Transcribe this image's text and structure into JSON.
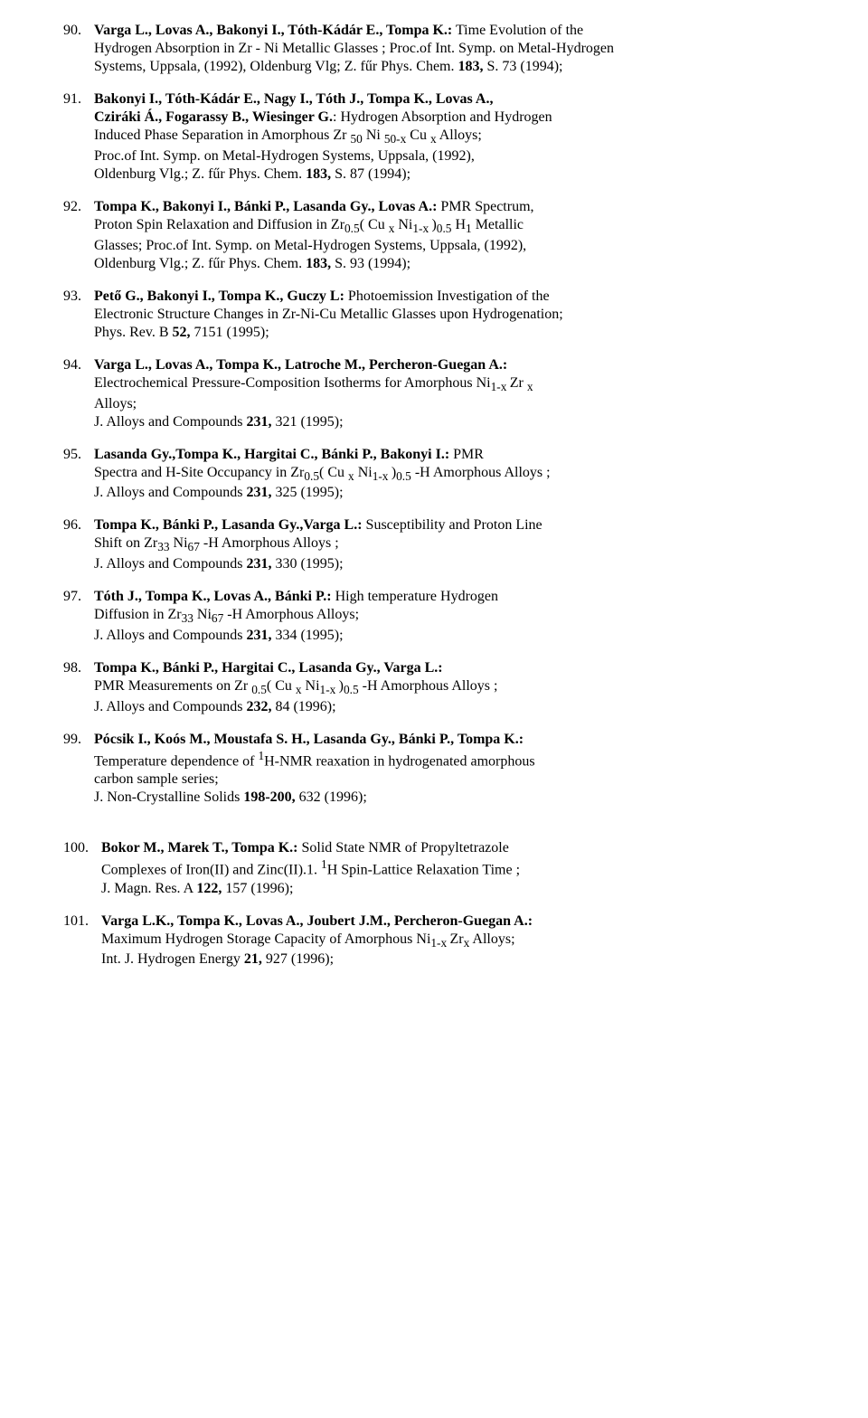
{
  "entries": [
    {
      "num": "90.",
      "authors": "Varga L.,  Lovas A., Bakonyi I., Tóth-Kádár E., Tompa K.:",
      "title_a": "  Time Evolution of the",
      "line2": "Hydrogen Absorption in Zr - Ni  Metallic Glasses ; Proc.of Int. Symp. on Metal-Hydrogen",
      "line3": "Systems, Uppsala, (1992), Oldenburg Vlg; Z. fűr  Phys. Chem. ",
      "bold_a": "183,",
      "after_a": " S. 73 (1994);"
    },
    {
      "num": "91.",
      "authors": "Bakonyi I., Tóth-Kádár E., Nagy I., Tóth J., Tompa K., Lovas A.,",
      "line2_b": "Cziráki Á., Fogarassy B., Wiesinger G.",
      "title_a": ": Hydrogen Absorption and Hydrogen",
      "line3": "Induced Phase Separation in Amorphous  Zr ",
      "sub1": "50",
      "mid1": " Ni ",
      "sub2": "50-x",
      "mid2": "  Cu ",
      "sub3": "x",
      "mid3": "  Alloys;",
      "line4": "Proc.of Int. Symp. on Metal-Hydrogen Systems, Uppsala, (1992),",
      "line5": "Oldenburg Vlg.; Z. fűr  Phys. Chem. ",
      "bold_a": "183,",
      "after_a": " S. 87 (1994);"
    },
    {
      "num": "92.",
      "authors": "Tompa K., Bakonyi I., Bánki P., Lasanda Gy., Lovas A.:",
      "title_a": "  PMR Spectrum,",
      "line2": "Proton Spin Relaxation and Diffusion in Zr",
      "sub1": "0.5",
      "mid1": "( Cu ",
      "sub2": "x",
      "mid2": " Ni",
      "sub3": "1-x ",
      "mid3": ")",
      "sub4": "0.5",
      "mid4": " H",
      "sub5": "1",
      "mid5": "  Metallic",
      "line3": "Glasses; Proc.of Int. Symp. on Metal-Hydrogen Systems, Uppsala, (1992),",
      "line4": "Oldenburg Vlg.; Z. fűr  Phys. Chem. ",
      "bold_a": "183,",
      "after_a": " S. 93 (1994);"
    },
    {
      "num": "93.",
      "sp": " ",
      "authors": "Pető G., Bakonyi I., Tompa K., Guczy L:",
      "title_a": " Photoemission Investigation of the",
      "line2": "Electronic Structure Changes in Zr-Ni-Cu Metallic Glasses upon Hydrogenation;",
      "line3": " Phys. Rev. B ",
      "bold_a": "52,",
      "after_a": " 7151 (1995);"
    },
    {
      "num": "94.",
      "authors": "Varga L., Lovas A., Tompa K., Latroche M., Percheron-Guegan A.:",
      "line2": "Electrochemical Pressure-Composition Isotherms for Amorphous Ni",
      "sub1": "1-x ",
      "mid1": "Zr ",
      "sub2": "x",
      "line3": "Alloys;",
      "line4": "J. Alloys and Compounds ",
      "bold_a": "231,",
      "after_a": " 321 (1995);"
    },
    {
      "num": "95.",
      "authors": "Lasanda Gy.,Tompa K., Hargitai C., Bánki P., Bakonyi I.:",
      "title_a": " PMR",
      "line2": "Spectra and H-Site Occupancy in  Zr",
      "sub1": "0.5",
      "mid1": "( Cu ",
      "sub2": "x",
      "mid2": " Ni",
      "sub3": "1-x ",
      "mid3": ")",
      "sub4": "0.5",
      "mid4": " -H Amorphous Alloys ;",
      "line3": "J. Alloys and Compounds ",
      "bold_a": "231,",
      "after_a": " 325 (1995);"
    },
    {
      "num": "96.",
      "authors": "Tompa K., Bánki P., Lasanda Gy.,Varga L.:",
      "title_a": " Susceptibility and Proton Line",
      "line2": " Shift on Zr",
      "sub1": "33",
      "mid1": " Ni",
      "sub2": "67",
      "mid2": " -H Amorphous Alloys ;",
      "line3": " J. Alloys and Compounds ",
      "bold_a": "231,",
      "after_a": " 330 (1995);"
    },
    {
      "num": "97.",
      "authors": "Tóth J., Tompa K., Lovas A., Bánki P.:",
      "title_a": " High temperature Hydrogen",
      "line2": "Diffusion in Zr",
      "sub1": "33",
      "mid1": " Ni",
      "sub2": "67",
      "mid2": " -H Amorphous Alloys;",
      "line3": "J. Alloys and Compounds ",
      "bold_a": "231,",
      "after_a": " 334 (1995);"
    },
    {
      "num": "98.",
      "authors": "Tompa K., Bánki P., Hargitai C.,  Lasanda Gy., Varga L.:",
      "line2": "PMR Measurements on Zr ",
      "sub1": "0.5",
      "mid1": "( Cu ",
      "sub2": "x",
      "mid2": " Ni",
      "sub3": "1-x ",
      "mid3": ")",
      "sub4": "0.5",
      "mid4": " -H Amorphous Alloys ;",
      "line3": "J. Alloys and Compounds ",
      "bold_a": "232,",
      "after_a": " 84 (1996);"
    },
    {
      "num": "99.",
      "authors": "Pócsik I., Koós M., Moustafa S. H., Lasanda Gy., Bánki P., Tompa K.:",
      "line2": "Temperature dependence of ",
      "sup1": "1",
      "mid1": "H-NMR reaxation in hydrogenated amorphous",
      "line3": "carbon sample series;",
      "line4": "J. Non-Crystalline Solids ",
      "bold_a": "198-200,",
      "after_a": " 632 (1996);"
    },
    {
      "num": "100.",
      "wide": true,
      "authors": "Bokor M., Marek T., Tompa K.:",
      "title_a": " Solid State NMR of Propyltetrazole",
      "line2": "Complexes of Iron(II) and Zinc(II).1. ",
      "sup1": "1",
      "mid1": "H Spin-Lattice Relaxation Time ;",
      "line3": "J. Magn. Res. A ",
      "bold_a": "122,",
      "after_a": " 157 (1996);"
    },
    {
      "num": "101.",
      "wide": true,
      "authors": "Varga L.K., Tompa K., Lovas A., Joubert J.M., Percheron-Guegan A.:",
      "line2": "Maximum Hydrogen Storage Capacity of Amorphous Ni",
      "sub1": "1-x ",
      "mid1": "Zr",
      "sub2": "x",
      "mid2": "  Alloys;",
      "line3": "Int. J. Hydrogen Energy ",
      "bold_a": "21,",
      "after_a": " 927 (1996);"
    }
  ]
}
